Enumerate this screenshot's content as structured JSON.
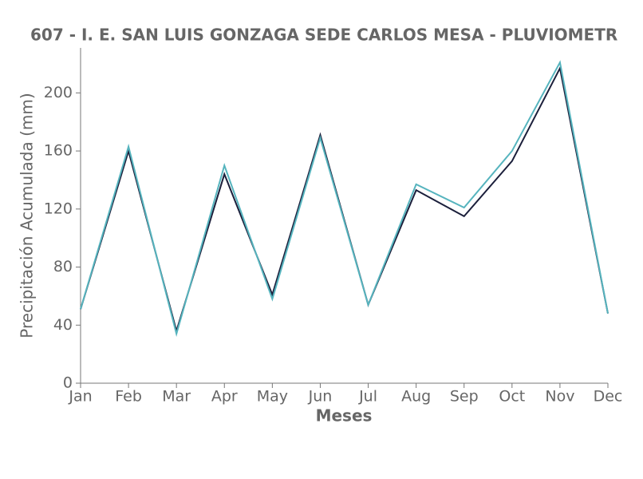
{
  "chart_data": {
    "type": "line",
    "title": "607 - I. E. SAN LUIS GONZAGA SEDE CARLOS MESA - PLUVIOMETR",
    "x_label": "Meses",
    "y_label": "Precipitación Acumulada (mm)",
    "categories": [
      "Jan",
      "Feb",
      "Mar",
      "Apr",
      "May",
      "Jun",
      "Jul",
      "Aug",
      "Sep",
      "Oct",
      "Nov",
      "Dec"
    ],
    "series": [
      {
        "color": "#1b1f3b",
        "values": [
          51,
          160,
          36,
          144,
          61,
          171,
          54,
          133,
          115,
          153,
          217,
          48
        ]
      },
      {
        "color": "#56b4be",
        "values": [
          51,
          163,
          34,
          150,
          58,
          169,
          54,
          137,
          121,
          160,
          221,
          48
        ]
      }
    ],
    "ylim": [
      0,
      231
    ],
    "yticks": [
      0,
      40,
      80,
      120,
      160,
      200
    ],
    "grid": false
  }
}
